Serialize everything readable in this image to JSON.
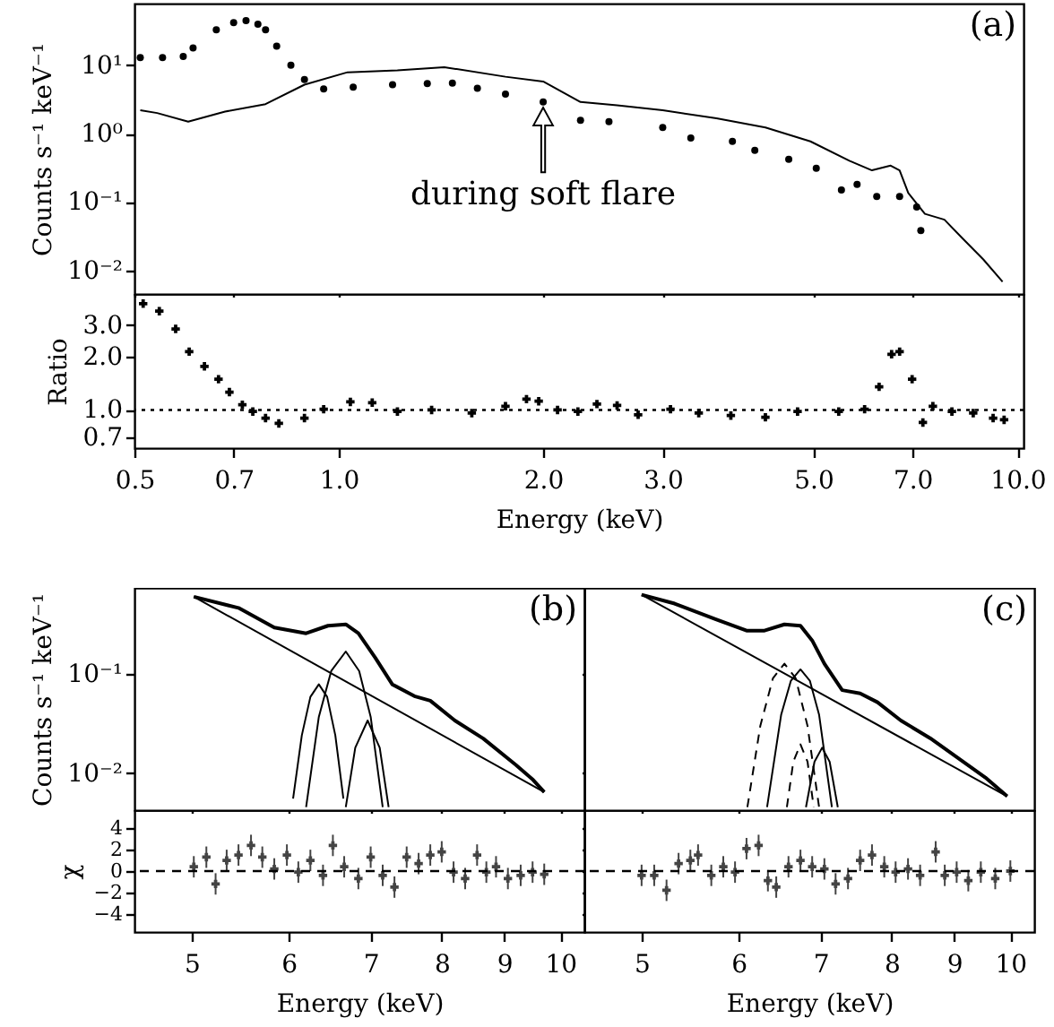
{
  "chart_data": [
    {
      "type": "line",
      "log": "xy",
      "ylabel": "Counts s⁻¹ keV⁻¹",
      "tick_labels": "y",
      "xlim": [
        0.5,
        10.2
      ],
      "ylim": [
        0.0045,
        80
      ],
      "xticks": [
        0.5,
        0.7,
        1,
        2,
        3,
        5,
        7,
        10
      ],
      "yticks": [
        {
          "value": 0.01,
          "label": "10⁻²"
        },
        {
          "value": 0.1,
          "label": "10⁻¹"
        },
        {
          "value": 1,
          "label": "10⁰"
        },
        {
          "value": 10,
          "label": "10¹"
        }
      ],
      "annotations": [
        "(a)",
        {
          "text": "during soft flare",
          "x": 2.0,
          "y": 2.4
        }
      ],
      "series": [
        {
          "type": "scatter",
          "marker": "circle",
          "color": "#000000",
          "x": [
            0.51,
            0.55,
            0.59,
            0.61,
            0.66,
            0.7,
            0.73,
            0.76,
            0.78,
            0.81,
            0.85,
            0.89,
            0.95,
            1.05,
            1.2,
            1.35,
            1.47,
            1.6,
            1.76,
            2.0,
            2.27,
            2.5,
            3.0,
            3.3,
            3.8,
            4.1,
            4.6,
            5.05,
            5.5,
            5.8,
            6.2,
            6.7,
            7.1,
            7.2
          ],
          "values": [
            13,
            13,
            13.5,
            18,
            33,
            42,
            45,
            40,
            33,
            19,
            10,
            6.2,
            4.5,
            4.8,
            5.2,
            5.4,
            5.5,
            4.6,
            3.8,
            2.9,
            1.57,
            1.5,
            1.23,
            0.86,
            0.77,
            0.57,
            0.42,
            0.31,
            0.15,
            0.18,
            0.12,
            0.12,
            0.084,
            0.038
          ]
        },
        {
          "color": "#000000",
          "x": [
            0.51,
            0.54,
            0.6,
            0.68,
            0.78,
            0.89,
            1.03,
            1.22,
            1.43,
            1.76,
            2.0,
            2.27,
            2.57,
            3.0,
            3.6,
            4.25,
            4.95,
            5.65,
            6.1,
            6.5,
            6.7,
            6.9,
            7.3,
            7.8,
            8.3,
            8.9,
            9.5
          ],
          "values": [
            2.2,
            2.0,
            1.5,
            2.1,
            2.7,
            5.2,
            7.9,
            8.4,
            9.4,
            6.8,
            5.8,
            2.9,
            2.6,
            2.2,
            1.67,
            1.23,
            0.77,
            0.4,
            0.29,
            0.34,
            0.29,
            0.135,
            0.067,
            0.055,
            0.029,
            0.0144,
            0.0068
          ]
        }
      ]
    },
    {
      "type": "scatter",
      "marker": "cross",
      "log": "xy",
      "xlabel": "Energy (keV)",
      "ylabel": "Ratio",
      "xlim": [
        0.5,
        10.2
      ],
      "ylim": [
        0.61,
        4.5
      ],
      "xticks": [
        0.5,
        0.7,
        {
          "value": 1,
          "label": "1.0"
        },
        {
          "value": 2,
          "label": "2.0"
        },
        {
          "value": 3,
          "label": "3.0"
        },
        {
          "value": 5,
          "label": "5.0"
        },
        {
          "value": 7,
          "label": "7.0"
        },
        {
          "value": 10,
          "label": "10.0"
        }
      ],
      "yticks": [
        0.7,
        {
          "value": 1,
          "label": "1.0"
        },
        {
          "value": 2,
          "label": "2.0"
        },
        {
          "value": 3,
          "label": "3.0"
        }
      ],
      "ref_lines": [
        {
          "axis": "y",
          "value": 1,
          "line_style": "dotted"
        }
      ],
      "x": [
        0.515,
        0.544,
        0.575,
        0.602,
        0.634,
        0.665,
        0.69,
        0.721,
        0.747,
        0.78,
        0.816,
        0.89,
        0.95,
        1.04,
        1.12,
        1.22,
        1.37,
        1.57,
        1.76,
        1.89,
        1.97,
        2.1,
        2.25,
        2.4,
        2.57,
        2.76,
        3.08,
        3.39,
        3.78,
        4.25,
        4.74,
        5.45,
        5.95,
        6.25,
        6.52,
        6.7,
        6.99,
        7.25,
        7.5,
        8.0,
        8.6,
        9.2,
        9.55
      ],
      "series": [
        {
          "color": "#000000",
          "values": [
            3.97,
            3.6,
            2.86,
            2.13,
            1.76,
            1.49,
            1.26,
            1.07,
            0.98,
            0.9,
            0.84,
            0.9,
            1.01,
            1.11,
            1.1,
            0.98,
            1.0,
            0.96,
            1.05,
            1.15,
            1.12,
            1.0,
            0.98,
            1.08,
            1.06,
            0.94,
            1.01,
            0.96,
            0.93,
            0.91,
            0.98,
            0.98,
            1.01,
            1.35,
            2.06,
            2.13,
            1.49,
            0.85,
            1.05,
            0.98,
            0.96,
            0.9,
            0.88
          ]
        }
      ]
    },
    {
      "type": "line",
      "log": "xy",
      "ylabel": "Counts s⁻¹ keV⁻¹",
      "tick_labels": "y",
      "xlim": [
        4.49,
        10.46
      ],
      "ylim": [
        0.0042,
        0.75
      ],
      "xticks": [
        5,
        6,
        7,
        8,
        9,
        10
      ],
      "yticks": [
        {
          "value": 0.01,
          "label": "10⁻²"
        },
        {
          "value": 0.1,
          "label": "10⁻¹"
        }
      ],
      "annotations": [
        "(b)"
      ],
      "series": [
        {
          "color": "#000000",
          "x": [
            5.02,
            5.46,
            5.84,
            6.2,
            6.46,
            6.68,
            6.84,
            7.06,
            7.29,
            7.6,
            7.83,
            8.2,
            8.65,
            9.2,
            9.5,
            9.7
          ],
          "values": [
            0.61,
            0.47,
            0.297,
            0.26,
            0.31,
            0.32,
            0.26,
            0.147,
            0.079,
            0.06,
            0.054,
            0.034,
            0.0223,
            0.012,
            0.0085,
            0.0064
          ]
        },
        {
          "color": "#000000",
          "x": [
            5.02,
            9.7
          ],
          "values": [
            0.61,
            0.0064
          ]
        },
        {
          "color": "#000000",
          "x": [
            6.05,
            6.15,
            6.25,
            6.35,
            6.45,
            6.55,
            6.65
          ],
          "values": [
            0.0055,
            0.024,
            0.059,
            0.079,
            0.059,
            0.024,
            0.0055
          ]
        },
        {
          "color": "#000000",
          "x": [
            6.2,
            6.35,
            6.5,
            6.68,
            6.85,
            7.0,
            7.16
          ],
          "values": [
            0.0045,
            0.037,
            0.108,
            0.17,
            0.108,
            0.037,
            0.0045
          ]
        },
        {
          "color": "#000000",
          "x": [
            6.68,
            6.8,
            6.96,
            7.12,
            7.24
          ],
          "values": [
            0.0045,
            0.018,
            0.034,
            0.018,
            0.0045
          ]
        }
      ]
    },
    {
      "type": "scatter",
      "marker": "cross",
      "log": "x",
      "xlabel": "Energy (keV)",
      "ylabel": "χ",
      "xlim": [
        4.49,
        10.46
      ],
      "ylim": [
        -5.7,
        5.7
      ],
      "xticks": [
        5,
        6,
        7,
        8,
        9,
        10
      ],
      "yticks": [
        -4,
        -2,
        0,
        2,
        4
      ],
      "ref_lines": [
        {
          "axis": "y",
          "value": 0,
          "line_style": "dashed"
        }
      ],
      "series": [
        {
          "color": "#444444",
          "x": [
            5.02,
            5.14,
            5.23,
            5.34,
            5.46,
            5.59,
            5.71,
            5.84,
            5.98,
            6.11,
            6.25,
            6.4,
            6.52,
            6.66,
            6.84,
            7.0,
            7.16,
            7.32,
            7.49,
            7.66,
            7.83,
            8.0,
            8.18,
            8.36,
            8.55,
            8.7,
            8.86,
            9.06,
            9.28,
            9.49,
            9.7
          ],
          "values": [
            0.4,
            1.3,
            -1.2,
            1,
            1.5,
            2.4,
            1.3,
            0.2,
            1.5,
            -0.1,
            1,
            -0.4,
            2.4,
            0.4,
            -0.7,
            1.3,
            -0.4,
            -1.5,
            1.3,
            0.7,
            1.5,
            1.8,
            -0.1,
            -0.7,
            1.5,
            -0.1,
            0.4,
            -0.7,
            -0.4,
            -0.1,
            -0.3
          ],
          "errors": [
            1,
            1,
            1,
            1,
            1,
            1,
            1,
            1,
            1,
            1,
            1,
            1,
            1,
            1,
            1,
            1,
            1,
            1,
            1,
            1,
            1,
            1,
            1,
            1,
            1,
            1,
            1,
            1,
            1,
            1,
            1
          ]
        }
      ]
    },
    {
      "type": "line",
      "log": "xy",
      "tick_labels": false,
      "xlim": [
        4.49,
        10.46
      ],
      "ylim": [
        0.0042,
        0.75
      ],
      "xticks": [
        5,
        6,
        7,
        8,
        9,
        10
      ],
      "yticks": [
        0.01,
        0.1
      ],
      "annotations": [
        "(c)"
      ],
      "series": [
        {
          "color": "#000000",
          "x": [
            5.0,
            5.32,
            5.75,
            6.09,
            6.3,
            6.54,
            6.74,
            6.89,
            7.05,
            7.29,
            7.54,
            7.79,
            8.14,
            8.6,
            9.09,
            9.54,
            9.94
          ],
          "values": [
            0.64,
            0.52,
            0.36,
            0.277,
            0.277,
            0.32,
            0.31,
            0.22,
            0.128,
            0.069,
            0.064,
            0.052,
            0.034,
            0.0225,
            0.0138,
            0.009,
            0.0058
          ]
        },
        {
          "color": "#000000",
          "x": [
            5.0,
            9.94
          ],
          "values": [
            0.64,
            0.0058
          ]
        },
        {
          "color": "#000000",
          "line_style": "dashed",
          "x": [
            6.1,
            6.25,
            6.4,
            6.54,
            6.68,
            6.83,
            6.98
          ],
          "values": [
            0.0045,
            0.03,
            0.091,
            0.128,
            0.091,
            0.03,
            0.0045
          ]
        },
        {
          "color": "#000000",
          "x": [
            6.33,
            6.5,
            6.62,
            6.74,
            6.86,
            6.98,
            7.15
          ],
          "values": [
            0.0045,
            0.039,
            0.086,
            0.112,
            0.086,
            0.039,
            0.0045
          ]
        },
        {
          "color": "#000000",
          "line_style": "dashed",
          "x": [
            6.57,
            6.65,
            6.74,
            6.83,
            6.91
          ],
          "values": [
            0.0045,
            0.013,
            0.0195,
            0.013,
            0.0045
          ]
        },
        {
          "color": "#000000",
          "x": [
            6.81,
            6.92,
            7.02,
            7.12,
            7.23
          ],
          "values": [
            0.0045,
            0.013,
            0.018,
            0.013,
            0.0045
          ]
        }
      ]
    },
    {
      "type": "scatter",
      "marker": "cross",
      "log": "x",
      "tick_labels": "x",
      "xlabel": "Energy (keV)",
      "xlim": [
        4.49,
        10.46
      ],
      "ylim": [
        -5.7,
        5.7
      ],
      "xticks": [
        5,
        6,
        7,
        8,
        9,
        10
      ],
      "yticks": [
        -4,
        -2,
        0,
        2,
        4
      ],
      "ref_lines": [
        {
          "axis": "y",
          "value": 0,
          "line_style": "dashed"
        }
      ],
      "series": [
        {
          "color": "#444444",
          "x": [
            5.0,
            5.12,
            5.24,
            5.36,
            5.48,
            5.56,
            5.7,
            5.83,
            5.96,
            6.09,
            6.23,
            6.34,
            6.44,
            6.59,
            6.74,
            6.89,
            7.05,
            7.2,
            7.37,
            7.54,
            7.71,
            7.89,
            8.06,
            8.25,
            8.44,
            8.69,
            8.84,
            9.04,
            9.24,
            9.46,
            9.72,
            10.0
          ],
          "values": [
            -0.4,
            -0.4,
            -1.8,
            0.7,
            1.0,
            1.5,
            -0.4,
            0.4,
            -0.1,
            2.1,
            2.4,
            -0.9,
            -1.5,
            0.4,
            1.0,
            0.4,
            0.2,
            -1.2,
            -0.7,
            1.0,
            1.5,
            0.4,
            -0.1,
            0.2,
            -0.4,
            1.8,
            -0.4,
            -0.1,
            -0.9,
            -0.1,
            -0.7,
            0
          ],
          "errors": [
            1,
            1,
            1,
            1,
            1,
            1,
            1,
            1,
            1,
            1,
            1,
            1,
            1,
            1,
            1,
            1,
            1,
            1,
            1,
            1,
            1,
            1,
            1,
            1,
            1,
            1,
            1,
            1,
            1,
            1,
            1,
            1
          ]
        }
      ]
    }
  ]
}
